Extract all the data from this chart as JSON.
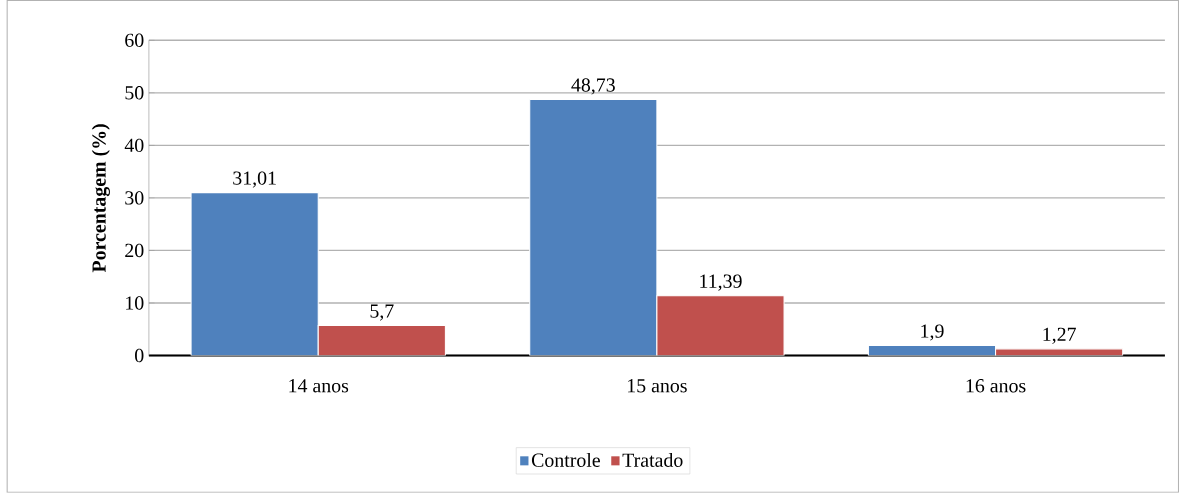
{
  "chart_data": {
    "type": "bar",
    "ylabel": "Porcentagem (%)",
    "categories": [
      "14 anos",
      "15 anos",
      "16 anos"
    ],
    "series": [
      {
        "name": "Controle",
        "color": "#4f81bd",
        "values": [
          31.01,
          48.73,
          1.9
        ],
        "value_labels": [
          "31,01",
          "48,73",
          "1,9"
        ]
      },
      {
        "name": "Tratado",
        "color": "#c0504d",
        "values": [
          5.7,
          11.39,
          1.27
        ],
        "value_labels": [
          "5,7",
          "11,39",
          "1,27"
        ]
      }
    ],
    "ylim": [
      0,
      60
    ],
    "yticks": [
      0,
      10,
      20,
      30,
      40,
      50,
      60
    ],
    "grid": "y",
    "legend": "bottom"
  }
}
